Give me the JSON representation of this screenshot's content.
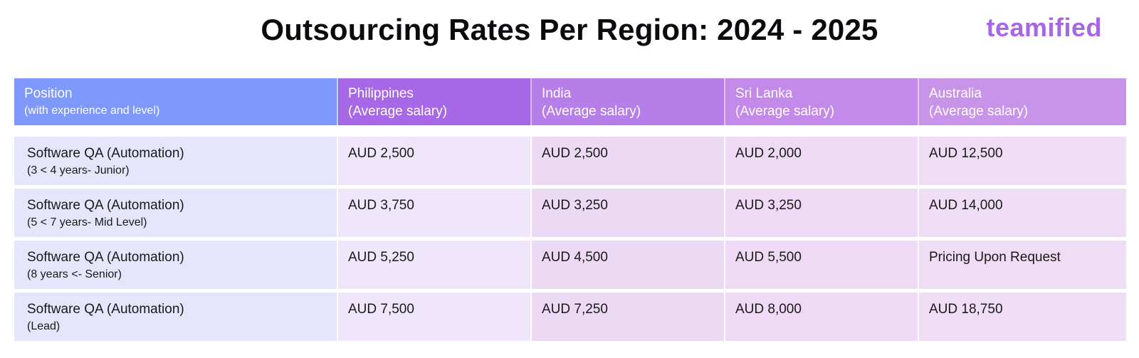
{
  "title": "Outsourcing Rates Per Region: 2024 - 2025",
  "brand": "teamified",
  "headers": [
    {
      "main": "Position",
      "sub": "(with experience and level)"
    },
    {
      "main": "Philippines",
      "sub": "(Average salary)"
    },
    {
      "main": "India",
      "sub": "(Average salary)"
    },
    {
      "main": "Sri Lanka",
      "sub": "(Average salary)"
    },
    {
      "main": "Australia",
      "sub": "(Average salary)"
    }
  ],
  "rows": [
    {
      "position": "Software QA (Automation)",
      "level": "(3 < 4 years- Junior)",
      "values": [
        "AUD 2,500",
        "AUD 2,500",
        "AUD 2,000",
        "AUD 12,500"
      ]
    },
    {
      "position": "Software QA (Automation)",
      "level": "(5 < 7 years- Mid Level)",
      "values": [
        "AUD 3,750",
        "AUD 3,250",
        "AUD 3,250",
        "AUD 14,000"
      ]
    },
    {
      "position": "Software QA (Automation)",
      "level": "(8 years <- Senior)",
      "values": [
        "AUD 5,250",
        "AUD 4,500",
        "AUD 5,500",
        "Pricing Upon Request"
      ]
    },
    {
      "position": "Software QA (Automation)",
      "level": "(Lead)",
      "values": [
        "AUD 7,500",
        "AUD 7,250",
        "AUD 8,000",
        "AUD 18,750"
      ]
    }
  ],
  "colors": {
    "brand": "#a766e6",
    "header_position": "#7f98fb",
    "header_philippines": "#a768e8",
    "header_india": "#b67ee9",
    "header_srilanka": "#c48aea",
    "header_australia": "#c894ea"
  }
}
